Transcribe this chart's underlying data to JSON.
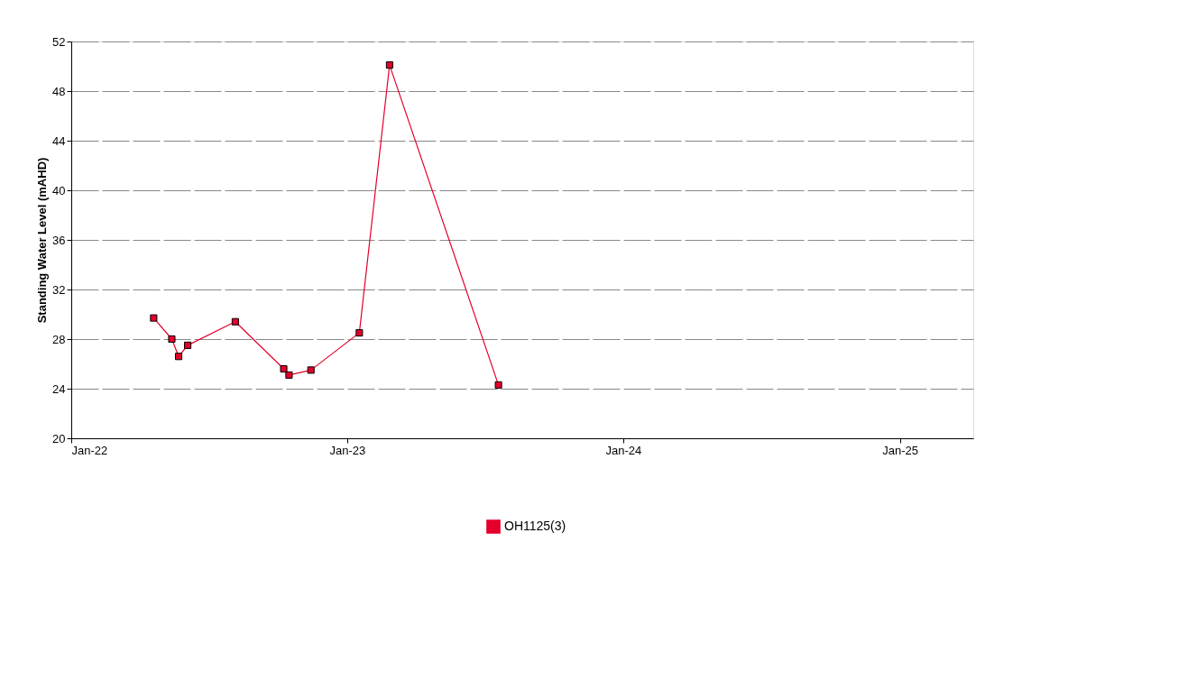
{
  "chart_data": {
    "type": "line",
    "ylabel": "Standing Water Level (mAHD)",
    "x": [
      "2022-04-20",
      "2022-05-14",
      "2022-05-23",
      "2022-06-04",
      "2022-08-06",
      "2022-10-09",
      "2022-10-16",
      "2022-11-14",
      "2023-01-17",
      "2023-02-26",
      "2023-07-20"
    ],
    "series": [
      {
        "name": "OH1125(3)",
        "color": "#e4002b",
        "values": [
          29.7,
          28.0,
          26.6,
          27.5,
          29.4,
          25.6,
          25.1,
          25.5,
          28.5,
          50.1,
          24.3
        ]
      }
    ],
    "xlim": [
      "2022-01-01",
      "2025-04-08"
    ],
    "xticks": [
      {
        "value": "2022-01-01",
        "label": "Jan-22"
      },
      {
        "value": "2023-01-01",
        "label": "Jan-23"
      },
      {
        "value": "2024-01-01",
        "label": "Jan-24"
      },
      {
        "value": "2025-01-01",
        "label": "Jan-25"
      }
    ],
    "ylim": [
      20,
      52
    ],
    "yticks": [
      20,
      24,
      28,
      32,
      36,
      40,
      44,
      48,
      52
    ],
    "grid": "y",
    "legend": "bottom",
    "marker": "square",
    "line_style": "solid"
  }
}
